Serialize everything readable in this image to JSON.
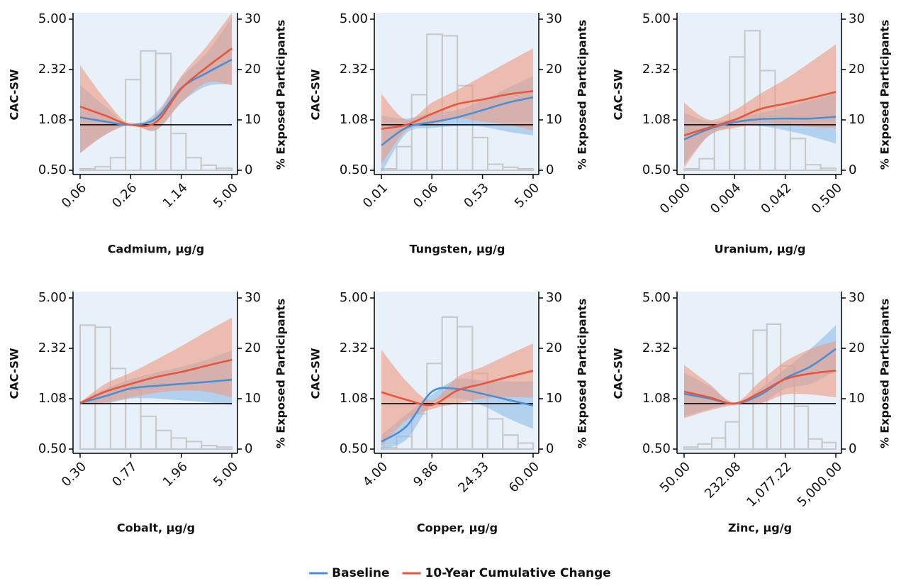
{
  "legend": {
    "position": "bottom",
    "entries": [
      {
        "name": "Baseline",
        "color": "#4a8fd4",
        "band_color": "#8dbce8"
      },
      {
        "name": "10-Year Cumulative Change",
        "color": "#e8553a",
        "band_color": "#ee9a80"
      }
    ]
  },
  "chart_data": [
    {
      "type": "line",
      "xscale": "log",
      "yscale": "log",
      "xlabel": "Cadmium, μg/g",
      "ylabel": "CAC-SW",
      "y2label": "% Exposed Participants",
      "xlim": [
        0.0593,
        5
      ],
      "xticks": [
        {
          "value": 0.0593,
          "label": "0.06"
        },
        0.26,
        1.14,
        {
          "value": 5,
          "label": "5.00"
        }
      ],
      "ylim": [
        0.5,
        5
      ],
      "yticks": [
        {
          "value": 0.5,
          "label": "0.50"
        },
        {
          "value": 1.077,
          "label": "1.08"
        },
        {
          "value": 2.321,
          "label": "2.32"
        },
        {
          "value": 5,
          "label": "5.00"
        }
      ],
      "y2lim": [
        0,
        30
      ],
      "y2ticks": [
        0,
        10,
        20,
        30
      ],
      "reference_line": 1,
      "background": "#e8f0fa",
      "histogram": {
        "axis": "y2",
        "color": "#c8c8c8",
        "bins": [
          0.0593,
          0.092,
          0.144,
          0.224,
          0.348,
          0.541,
          0.842,
          1.31,
          2.04,
          3.17,
          5
        ],
        "values": [
          0.3,
          0.7,
          2.5,
          18,
          23.7,
          23.2,
          7.3,
          2.5,
          1,
          0.4
        ]
      },
      "x": [
        0.0593,
        0.124,
        0.26,
        0.544,
        1.14,
        2.39,
        5
      ],
      "series": [
        {
          "values": [
            1.12,
            1.05,
            1.0,
            1.1,
            1.75,
            2.2,
            2.7
          ],
          "lower": [
            0.65,
            0.86,
            1.0,
            0.93,
            1.4,
            1.8,
            1.85
          ],
          "upper": [
            1.83,
            1.32,
            1.0,
            1.2,
            2.04,
            3.0,
            5.1
          ]
        },
        {
          "values": [
            1.32,
            1.15,
            1.0,
            1.04,
            1.73,
            2.4,
            3.2
          ],
          "lower": [
            0.65,
            0.86,
            1.0,
            0.92,
            1.4,
            1.9,
            1.83
          ],
          "upper": [
            2.48,
            1.47,
            1.0,
            1.15,
            2.1,
            3.3,
            5.5
          ]
        }
      ]
    },
    {
      "type": "line",
      "xscale": "log",
      "yscale": "log",
      "xlabel": "Tungsten, μg/g",
      "ylabel": "CAC-SW",
      "y2label": "% Exposed Participants",
      "xlim": [
        0.006,
        5
      ],
      "xticks": [
        {
          "value": 0.006,
          "label": "0.01"
        },
        {
          "value": 0.0562,
          "label": "0.06"
        },
        0.53,
        {
          "value": 5,
          "label": "5.00"
        }
      ],
      "ylim": [
        0.5,
        5
      ],
      "yticks": [
        {
          "value": 0.5,
          "label": "0.50"
        },
        {
          "value": 1.077,
          "label": "1.08"
        },
        {
          "value": 2.321,
          "label": "2.32"
        },
        {
          "value": 5,
          "label": "5.00"
        }
      ],
      "y2lim": [
        0,
        30
      ],
      "y2ticks": [
        0,
        10,
        20,
        30
      ],
      "reference_line": 1,
      "background": "#e8f0fa",
      "histogram": {
        "axis": "y2",
        "color": "#c8c8c8",
        "bins": [
          0.006,
          0.0118,
          0.023,
          0.045,
          0.089,
          0.174,
          0.341,
          0.668,
          1.31,
          2.57,
          5
        ],
        "values": [
          0.3,
          4.7,
          15,
          27,
          26.7,
          16.8,
          6.5,
          1.2,
          0.6,
          0.3
        ]
      },
      "x": [
        0.006,
        0.0183,
        0.0562,
        0.173,
        0.53,
        1.63,
        5
      ],
      "series": [
        {
          "values": [
            0.73,
            0.96,
            1.04,
            1.12,
            1.25,
            1.4,
            1.52
          ],
          "lower": [
            0.48,
            0.88,
            0.95,
            0.98,
            0.97,
            0.9,
            0.85
          ],
          "upper": [
            1.15,
            1.1,
            1.2,
            1.25,
            1.45,
            1.75,
            2.1
          ]
        },
        {
          "values": [
            0.94,
            1.0,
            1.18,
            1.37,
            1.47,
            1.59,
            1.67
          ],
          "lower": [
            0.55,
            0.92,
            1.0,
            1.1,
            1.05,
            1.0,
            0.92
          ],
          "upper": [
            1.6,
            1.08,
            1.4,
            1.7,
            2.1,
            2.6,
            3.2
          ]
        }
      ]
    },
    {
      "type": "line",
      "xscale": "log",
      "yscale": "log",
      "xlabel": "Uranium, μg/g",
      "ylabel": "CAC-SW",
      "y2label": "% Exposed Participants",
      "xlim": [
        0.000297,
        0.5
      ],
      "xticks": [
        {
          "value": 0.000297,
          "label": "0.000"
        },
        {
          "value": 0.00353,
          "label": "0.004"
        },
        0.042,
        {
          "value": 0.5,
          "label": "0.500"
        }
      ],
      "ylim": [
        0.5,
        5
      ],
      "yticks": [
        {
          "value": 0.5,
          "label": "0.50"
        },
        {
          "value": 1.077,
          "label": "1.08"
        },
        {
          "value": 2.321,
          "label": "2.32"
        },
        {
          "value": 5,
          "label": "5.00"
        }
      ],
      "y2lim": [
        0,
        30
      ],
      "y2ticks": [
        0,
        10,
        20,
        30
      ],
      "reference_line": 1,
      "background": "#e8f0fa",
      "histogram": {
        "axis": "y2",
        "color": "#c8c8c8",
        "bins": [
          0.000297,
          0.000624,
          0.00131,
          0.00276,
          0.0058,
          0.0122,
          0.0256,
          0.0538,
          0.113,
          0.238,
          0.5
        ],
        "values": [
          0.3,
          2.3,
          8.5,
          22.5,
          27.7,
          19.8,
          9.5,
          6.3,
          1.1,
          0.4
        ]
      },
      "x": [
        0.000297,
        0.00102,
        0.00353,
        0.0122,
        0.042,
        0.145,
        0.5
      ],
      "series": [
        {
          "values": [
            0.8,
            0.94,
            1.04,
            1.09,
            1.1,
            1.1,
            1.13
          ],
          "lower": [
            0.55,
            0.85,
            0.98,
            0.98,
            0.92,
            0.84,
            0.75
          ],
          "upper": [
            1.2,
            1.05,
            1.1,
            1.2,
            1.3,
            1.45,
            1.6
          ]
        },
        {
          "values": [
            0.85,
            0.96,
            1.08,
            1.27,
            1.38,
            1.5,
            1.65
          ],
          "lower": [
            0.52,
            0.85,
            0.95,
            1.02,
            1.0,
            0.97,
            0.95
          ],
          "upper": [
            1.4,
            1.08,
            1.25,
            1.6,
            2.0,
            2.6,
            3.4
          ]
        }
      ]
    },
    {
      "type": "line",
      "xscale": "log",
      "yscale": "log",
      "xlabel": "Cobalt, μg/g",
      "ylabel": "CAC-SW",
      "y2label": "% Exposed Participants",
      "xlim": [
        0.3,
        5
      ],
      "xticks": [
        {
          "value": 0.3,
          "label": "0.30"
        },
        {
          "value": 0.768,
          "label": "0.77"
        },
        1.96,
        {
          "value": 5,
          "label": "5.00"
        }
      ],
      "ylim": [
        0.5,
        5
      ],
      "yticks": [
        {
          "value": 0.5,
          "label": "0.50"
        },
        {
          "value": 1.077,
          "label": "1.08"
        },
        {
          "value": 2.321,
          "label": "2.32"
        },
        {
          "value": 5,
          "label": "5.00"
        }
      ],
      "y2lim": [
        0,
        30
      ],
      "y2ticks": [
        0,
        10,
        20,
        30
      ],
      "reference_line": 1,
      "background": "#e8f0fa",
      "histogram": {
        "axis": "y2",
        "color": "#c8c8c8",
        "bins": [
          0.3,
          0.397,
          0.527,
          0.698,
          0.925,
          1.226,
          1.624,
          2.152,
          2.852,
          3.779,
          5
        ],
        "values": [
          24.6,
          24.2,
          16,
          11.8,
          6.5,
          3.7,
          2.2,
          1.5,
          0.7,
          0.4
        ]
      },
      "x": [
        0.3,
        0.479,
        0.768,
        1.226,
        1.96,
        3.13,
        5
      ],
      "series": [
        {
          "values": [
            1.01,
            1.12,
            1.26,
            1.31,
            1.35,
            1.39,
            1.44
          ],
          "lower": [
            1.0,
            1.0,
            1.08,
            1.08,
            1.05,
            1.02,
            0.98
          ],
          "upper": [
            1.02,
            1.25,
            1.45,
            1.6,
            1.75,
            1.95,
            2.25
          ]
        },
        {
          "values": [
            1.01,
            1.2,
            1.35,
            1.5,
            1.62,
            1.78,
            1.95
          ],
          "lower": [
            1.0,
            1.02,
            1.1,
            1.18,
            1.22,
            1.2,
            1.1
          ],
          "upper": [
            1.02,
            1.35,
            1.6,
            1.95,
            2.4,
            3.0,
            3.7
          ]
        }
      ]
    },
    {
      "type": "line",
      "xscale": "log",
      "yscale": "log",
      "xlabel": "Copper, μg/g",
      "ylabel": "CAC-SW",
      "y2label": "% Exposed Participants",
      "xlim": [
        4,
        60
      ],
      "xticks": [
        {
          "value": 4,
          "label": "4.00"
        },
        9.86,
        24.33,
        {
          "value": 60,
          "label": "60.00"
        }
      ],
      "ylim": [
        0.5,
        5
      ],
      "yticks": [
        {
          "value": 0.5,
          "label": "0.50"
        },
        {
          "value": 1.077,
          "label": "1.08"
        },
        {
          "value": 2.321,
          "label": "2.32"
        },
        {
          "value": 5,
          "label": "5.00"
        }
      ],
      "y2lim": [
        0,
        30
      ],
      "y2ticks": [
        0,
        10,
        20,
        30
      ],
      "reference_line": 1,
      "background": "#e8f0fa",
      "histogram": {
        "axis": "y2",
        "color": "#c8c8c8",
        "bins": [
          4,
          5.25,
          6.88,
          9.02,
          11.82,
          15.5,
          20.3,
          26.6,
          34.9,
          45.8,
          60
        ],
        "values": [
          0.3,
          2.5,
          7,
          17,
          26.2,
          24.3,
          15,
          6,
          2.8,
          1.2
        ]
      },
      "x": [
        4,
        6.28,
        9.86,
        15.49,
        24.33,
        38.2,
        60
      ],
      "series": [
        {
          "values": [
            0.56,
            0.71,
            1.2,
            1.25,
            1.16,
            1.06,
            0.97
          ],
          "lower": [
            0.5,
            0.58,
            1.0,
            1.08,
            0.97,
            0.8,
            0.68
          ],
          "upper": [
            0.62,
            0.85,
            1.15,
            1.45,
            1.42,
            1.4,
            1.4
          ]
        },
        {
          "values": [
            1.19,
            1.06,
            0.98,
            1.22,
            1.35,
            1.5,
            1.65
          ],
          "lower": [
            0.52,
            0.78,
            0.92,
            1.0,
            1.08,
            1.1,
            1.1
          ],
          "upper": [
            2.27,
            1.4,
            1.05,
            1.5,
            1.75,
            2.1,
            2.5
          ]
        }
      ]
    },
    {
      "type": "line",
      "xscale": "log",
      "yscale": "log",
      "xlabel": "Zinc, μg/g",
      "ylabel": "CAC-SW",
      "y2label": "% Exposed Participants",
      "xlim": [
        50,
        5000
      ],
      "xticks": [
        {
          "value": 50,
          "label": "50.00"
        },
        232.08,
        {
          "value": 1077.22,
          "label": "1,077.22"
        },
        {
          "value": 5000,
          "label": "5,000.00"
        }
      ],
      "ylim": [
        0.5,
        5
      ],
      "yticks": [
        {
          "value": 0.5,
          "label": "0.50"
        },
        {
          "value": 1.077,
          "label": "1.08"
        },
        {
          "value": 2.321,
          "label": "2.32"
        },
        {
          "value": 5,
          "label": "5.00"
        }
      ],
      "y2lim": [
        0,
        30
      ],
      "y2ticks": [
        0,
        10,
        20,
        30
      ],
      "reference_line": 1,
      "background": "#e8f0fa",
      "histogram": {
        "axis": "y2",
        "color": "#c8c8c8",
        "bins": [
          50,
          76,
          115.5,
          175.6,
          267,
          405.8,
          616.8,
          937.6,
          1425,
          2166,
          3293,
          5000
        ],
        "values": [
          0.4,
          1,
          2.2,
          5.4,
          15,
          23.6,
          24.8,
          16.5,
          8.5,
          2,
          1.3
        ]
      },
      "x": [
        50,
        107.7,
        232.08,
        500,
        1077.22,
        2321,
        5000
      ],
      "series": [
        {
          "values": [
            1.16,
            1.08,
            1.0,
            1.14,
            1.47,
            1.76,
            2.3
          ],
          "lower": [
            0.82,
            0.92,
            1.0,
            1.0,
            1.25,
            1.35,
            1.65
          ],
          "upper": [
            1.6,
            1.3,
            1.0,
            1.25,
            1.7,
            2.3,
            3.3
          ]
        },
        {
          "values": [
            1.2,
            1.1,
            1.0,
            1.18,
            1.45,
            1.58,
            1.65
          ],
          "lower": [
            0.8,
            0.9,
            0.98,
            1.0,
            1.15,
            1.15,
            1.1
          ],
          "upper": [
            1.8,
            1.35,
            1.02,
            1.4,
            1.9,
            2.3,
            2.6
          ]
        }
      ]
    }
  ]
}
